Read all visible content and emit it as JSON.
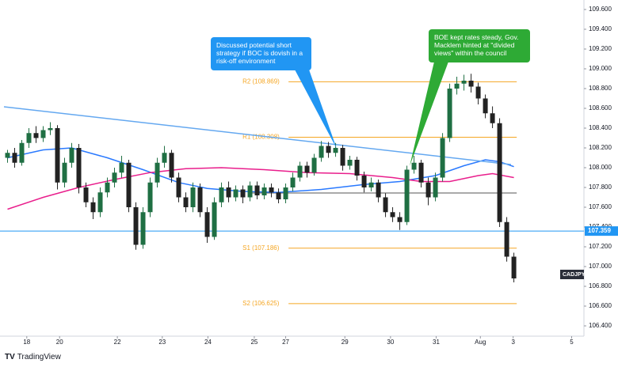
{
  "brand": "TradingView",
  "chart_data": {
    "type": "candlestick",
    "symbol": "CADJPY",
    "up_color": "#1f6f43",
    "down_color": "#222222",
    "open": [
      108.1,
      108.15,
      108.05,
      108.25,
      108.35,
      108.3,
      108.38,
      108.4,
      107.85,
      108.05,
      108.2,
      107.8,
      107.65,
      107.55,
      107.75,
      107.85,
      107.95,
      108.05,
      107.6,
      107.22,
      107.55,
      107.85,
      108.05,
      108.15,
      107.9,
      107.7,
      107.6,
      107.8,
      107.55,
      107.3,
      107.65,
      107.8,
      107.7,
      107.78,
      107.7,
      107.82,
      107.72,
      107.8,
      107.75,
      107.68,
      107.8,
      107.9,
      108.02,
      107.95,
      108.1,
      108.22,
      108.15,
      108.2,
      108.02,
      108.08,
      107.92,
      107.8,
      107.85,
      107.7,
      107.55,
      107.5,
      107.45,
      107.98,
      108.05,
      107.85,
      107.7,
      107.9,
      108.3,
      108.8,
      108.85,
      108.88,
      108.82,
      108.7,
      108.55,
      108.45,
      107.45,
      107.1
    ],
    "high": [
      108.18,
      108.2,
      108.28,
      108.4,
      108.42,
      108.42,
      108.46,
      108.43,
      108.1,
      108.25,
      108.24,
      107.85,
      107.7,
      107.8,
      107.9,
      108.0,
      108.12,
      108.08,
      107.65,
      107.6,
      107.9,
      108.1,
      108.22,
      108.18,
      107.95,
      107.75,
      107.85,
      107.84,
      107.6,
      107.7,
      107.85,
      107.86,
      107.82,
      107.82,
      107.86,
      107.86,
      107.84,
      107.84,
      107.79,
      107.84,
      107.95,
      108.06,
      108.06,
      108.14,
      108.27,
      108.26,
      108.25,
      108.23,
      108.12,
      108.11,
      107.96,
      107.9,
      107.88,
      107.74,
      107.6,
      107.55,
      108.02,
      108.12,
      108.08,
      107.9,
      107.95,
      108.35,
      108.85,
      108.92,
      108.94,
      108.95,
      108.86,
      108.74,
      108.62,
      108.5,
      107.5,
      107.14
    ],
    "low": [
      108.05,
      108.0,
      108.02,
      108.2,
      108.25,
      108.26,
      108.33,
      107.78,
      107.8,
      108.0,
      107.74,
      107.6,
      107.48,
      107.5,
      107.7,
      107.8,
      107.9,
      107.55,
      107.17,
      107.18,
      107.5,
      107.8,
      108.0,
      107.85,
      107.65,
      107.55,
      107.55,
      107.5,
      107.24,
      107.27,
      107.6,
      107.65,
      107.66,
      107.64,
      107.66,
      107.68,
      107.68,
      107.7,
      107.64,
      107.64,
      107.76,
      107.86,
      107.9,
      107.92,
      108.06,
      108.1,
      108.11,
      107.97,
      107.98,
      107.87,
      107.75,
      107.76,
      107.65,
      107.5,
      107.45,
      107.37,
      107.42,
      107.94,
      107.8,
      107.62,
      107.66,
      107.86,
      108.26,
      108.74,
      108.78,
      108.76,
      108.64,
      108.5,
      108.4,
      107.4,
      107.05,
      106.84
    ],
    "close": [
      108.15,
      108.05,
      108.25,
      108.35,
      108.3,
      108.38,
      108.4,
      107.85,
      108.05,
      108.2,
      107.8,
      107.65,
      107.55,
      107.75,
      107.85,
      107.95,
      108.05,
      107.6,
      107.22,
      107.55,
      107.85,
      108.05,
      108.15,
      107.9,
      107.7,
      107.6,
      107.8,
      107.55,
      107.3,
      107.65,
      107.8,
      107.7,
      107.78,
      107.7,
      107.82,
      107.72,
      107.8,
      107.75,
      107.68,
      107.8,
      107.9,
      108.02,
      107.95,
      108.1,
      108.22,
      108.15,
      108.2,
      108.02,
      108.08,
      107.92,
      107.8,
      107.85,
      107.7,
      107.55,
      107.5,
      107.45,
      107.98,
      108.05,
      107.85,
      107.7,
      107.9,
      108.3,
      108.8,
      108.85,
      108.88,
      108.82,
      108.7,
      108.55,
      108.45,
      107.45,
      107.1,
      106.88
    ],
    "lines": [
      {
        "color": "#2979ff",
        "x": [
          0,
          5,
          9,
          14,
          19,
          24,
          28,
          33,
          38,
          44,
          50,
          55,
          60,
          64,
          67,
          69,
          71
        ],
        "values": [
          108.1,
          108.18,
          108.2,
          108.1,
          107.98,
          107.85,
          107.79,
          107.76,
          107.75,
          107.78,
          107.83,
          107.86,
          107.92,
          108.02,
          108.08,
          108.06,
          108.01
        ]
      },
      {
        "color": "#e91e8c",
        "x": [
          0,
          5,
          10,
          15,
          20,
          25,
          30,
          36,
          42,
          48,
          54,
          58,
          62,
          66,
          68,
          71
        ],
        "values": [
          107.58,
          107.7,
          107.8,
          107.88,
          107.95,
          107.99,
          108.0,
          107.98,
          107.95,
          107.94,
          107.9,
          107.86,
          107.86,
          107.92,
          107.94,
          107.9
        ]
      },
      {
        "color": "#64a8f0",
        "x": [
          -0.5,
          70.6
        ],
        "values": [
          108.616,
          108.032
        ]
      }
    ],
    "levels": [
      {
        "label": "R2 (108.869)",
        "value": 108.869,
        "color": "#f5a623",
        "x": [
          39.4,
          71.4
        ]
      },
      {
        "label": "R1 (108.308)",
        "value": 108.308,
        "color": "#f5a623",
        "x": [
          39.4,
          71.4
        ]
      },
      {
        "label": "S1 (107.186)",
        "value": 107.186,
        "color": "#f5a623",
        "x": [
          39.4,
          71.4
        ]
      },
      {
        "label": "S2 (106.625)",
        "value": 106.625,
        "color": "#f5a623",
        "x": [
          39.4,
          71.4
        ]
      },
      {
        "value": 107.744,
        "color": "#555555",
        "x": [
          34.0,
          71.4
        ]
      }
    ],
    "hline": {
      "value": 107.359,
      "label": "107.359",
      "color": "#2196f3"
    },
    "annotations": [
      "Discussed potential short strategy if BOC is dovish in a risk-off environment",
      "BOE kept rates steady, Gov. Macklem hinted at \"divided views\" within the council"
    ],
    "xlim": [
      -0.5,
      80.6
    ],
    "xticks": [
      {
        "value": 2.7,
        "label": "18"
      },
      {
        "value": 7.3,
        "label": "20"
      },
      {
        "value": 15.4,
        "label": "22"
      },
      {
        "value": 21.7,
        "label": "23"
      },
      {
        "value": 28.1,
        "label": "24"
      },
      {
        "value": 34.6,
        "label": "25"
      },
      {
        "value": 39.0,
        "label": "27"
      },
      {
        "value": 47.3,
        "label": "29"
      },
      {
        "value": 53.7,
        "label": "30"
      },
      {
        "value": 60.1,
        "label": "31"
      },
      {
        "value": 66.3,
        "label": "Aug"
      },
      {
        "value": 70.9,
        "label": "3"
      },
      {
        "value": 79.1,
        "label": "5"
      }
    ],
    "ylim": [
      106.296,
      109.696
    ],
    "yticks": [
      {
        "value": 106.4,
        "label": "106.400"
      },
      {
        "value": 106.6,
        "label": "106.600"
      },
      {
        "value": 106.8,
        "label": "106.800"
      },
      {
        "value": 107.0,
        "label": "107.000"
      },
      {
        "value": 107.2,
        "label": "107.200"
      },
      {
        "value": 107.4,
        "label": "107.400"
      },
      {
        "value": 107.6,
        "label": "107.600"
      },
      {
        "value": 107.8,
        "label": "107.800"
      },
      {
        "value": 108.0,
        "label": "108.000"
      },
      {
        "value": 108.2,
        "label": "108.200"
      },
      {
        "value": 108.4,
        "label": "108.400"
      },
      {
        "value": 108.6,
        "label": "108.600"
      },
      {
        "value": 108.8,
        "label": "108.800"
      },
      {
        "value": 109.0,
        "label": "109.000"
      },
      {
        "value": 109.2,
        "label": "109.200"
      },
      {
        "value": 109.4,
        "label": "109.400"
      },
      {
        "value": 109.6,
        "label": "109.600"
      }
    ]
  }
}
